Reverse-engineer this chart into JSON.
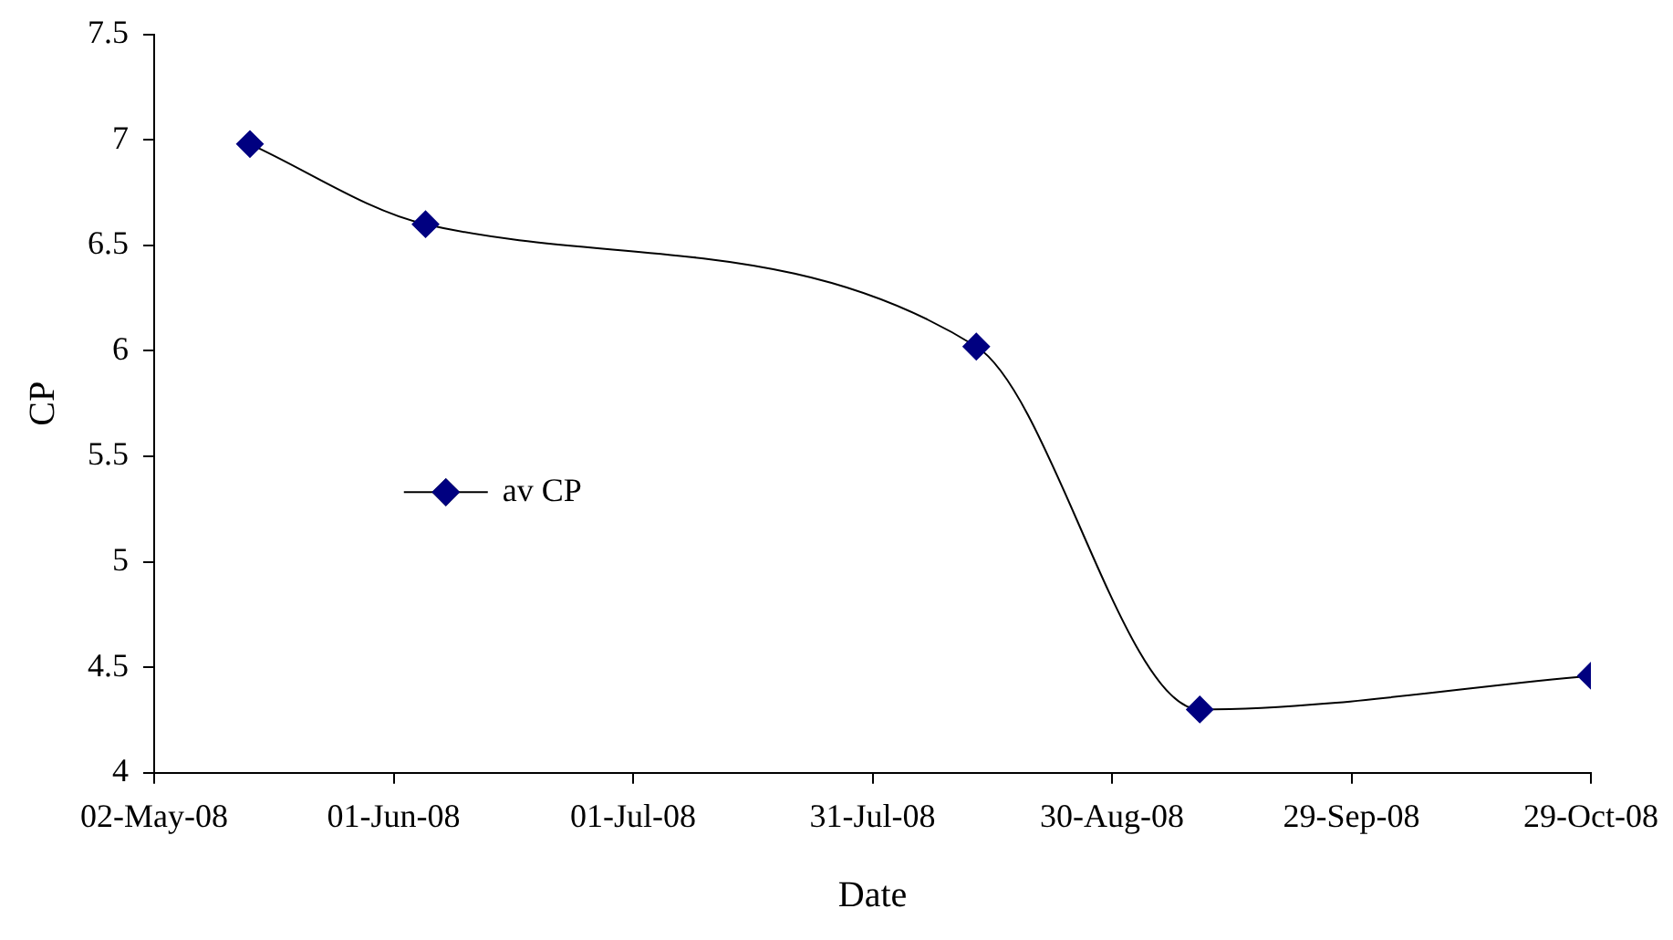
{
  "chart_data": {
    "type": "line",
    "xlabel": "Date",
    "ylabel": "CP",
    "x": [
      "2008-05-14",
      "2008-06-05",
      "2008-08-13",
      "2008-09-10",
      "2008-10-29"
    ],
    "series": [
      {
        "name": "av CP",
        "color": "#000080",
        "values": [
          6.98,
          6.6,
          6.02,
          4.3,
          4.46
        ]
      }
    ],
    "xlim": [
      "2008-05-02",
      "2008-10-29"
    ],
    "xticks": [
      {
        "value": "2008-05-02",
        "label": "02-May-08"
      },
      {
        "value": "2008-06-01",
        "label": "01-Jun-08"
      },
      {
        "value": "2008-07-01",
        "label": "01-Jul-08"
      },
      {
        "value": "2008-07-31",
        "label": "31-Jul-08"
      },
      {
        "value": "2008-08-30",
        "label": "30-Aug-08"
      },
      {
        "value": "2008-09-29",
        "label": "29-Sep-08"
      },
      {
        "value": "2008-10-29",
        "label": "29-Oct-08"
      }
    ],
    "ylim": [
      4,
      7.5
    ],
    "yticks": [
      4,
      4.5,
      5,
      5.5,
      6,
      6.5,
      7,
      7.5
    ],
    "grid": false,
    "legend": "center left",
    "marker": "diamond",
    "line_style": "solid"
  }
}
